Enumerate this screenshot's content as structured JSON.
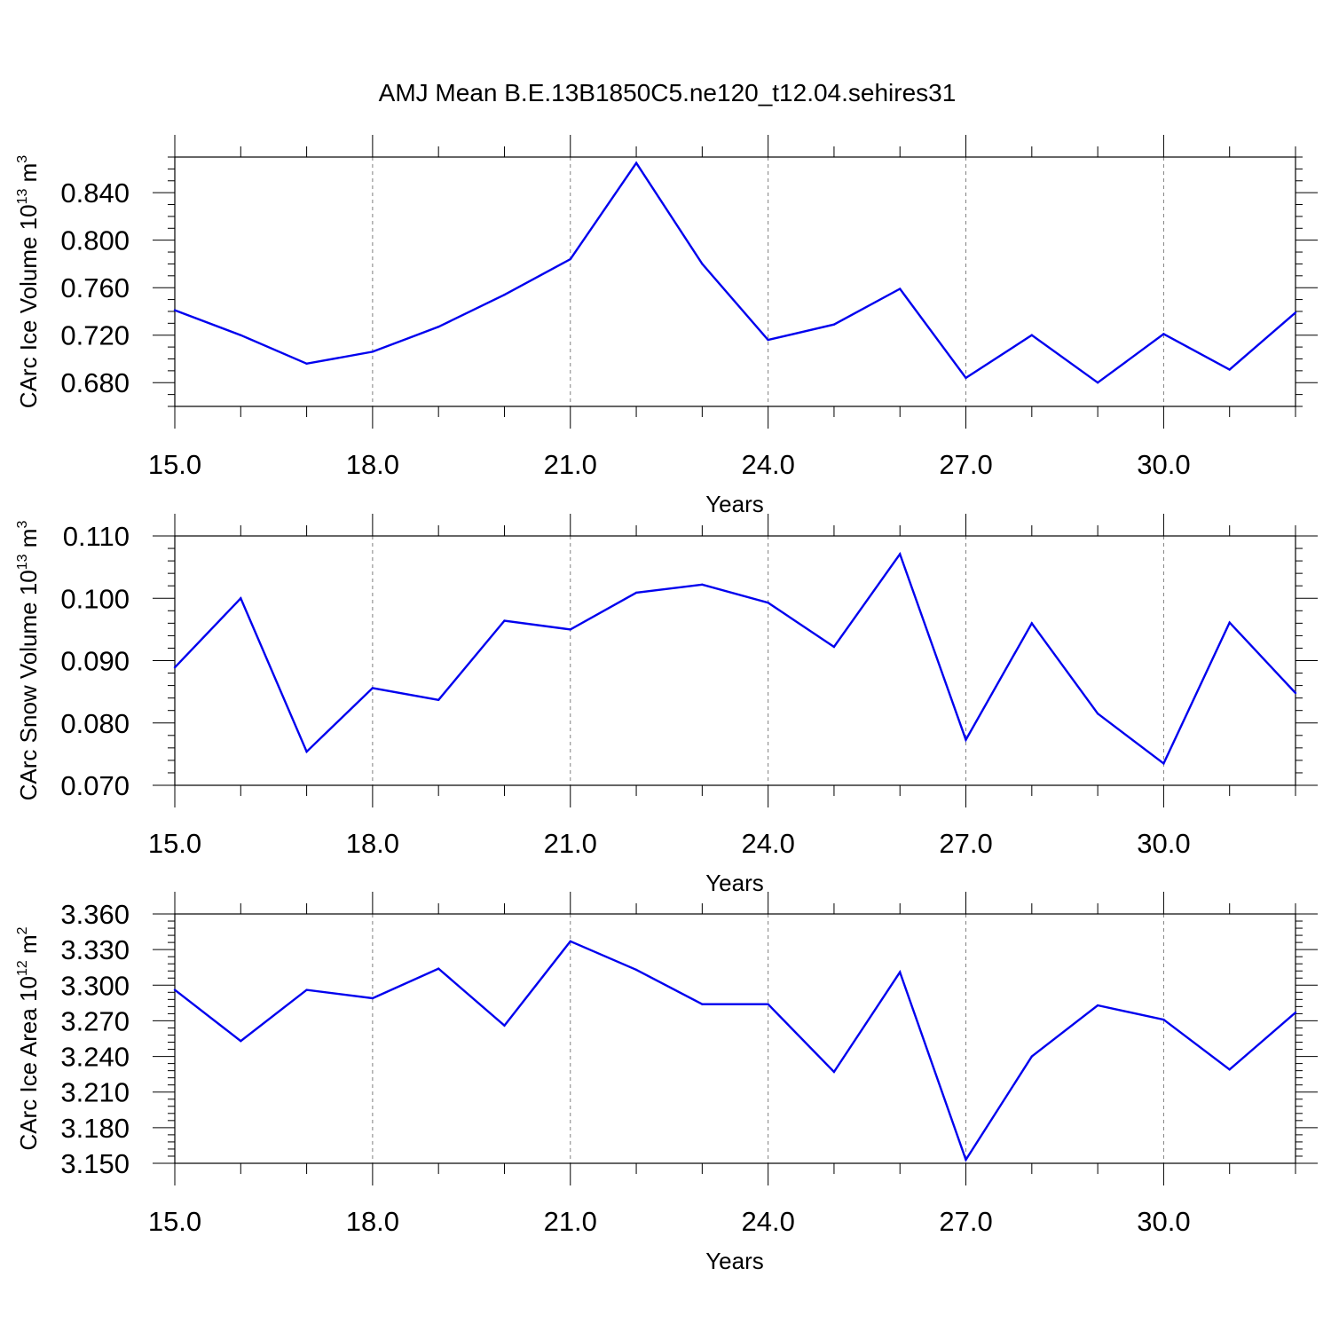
{
  "title": "AMJ Mean B.E.13B1850C5.ne120_t12.04.sehires31",
  "colors": {
    "line": "#0000ee",
    "axis": "#000000",
    "grid": "#808080"
  },
  "chart_data": [
    {
      "type": "line",
      "xlabel": "Years",
      "ylabel": {
        "text": "CArc Ice Volume 10",
        "sup": "13",
        "unit": " m",
        "unit_sup": "3"
      },
      "x": [
        15,
        16,
        17,
        18,
        19,
        20,
        21,
        22,
        23,
        24,
        25,
        26,
        27,
        28,
        29,
        30,
        31,
        32
      ],
      "values": [
        0.741,
        0.72,
        0.696,
        0.706,
        0.727,
        0.754,
        0.784,
        0.865,
        0.78,
        0.716,
        0.729,
        0.759,
        0.684,
        0.72,
        0.68,
        0.721,
        0.691,
        0.739
      ],
      "xlim": [
        15,
        32
      ],
      "ylim": [
        0.66,
        0.87
      ],
      "xticks": [
        15,
        18,
        21,
        24,
        27,
        30
      ],
      "xtick_labels": [
        "15.0",
        "18.0",
        "21.0",
        "24.0",
        "27.0",
        "30.0"
      ],
      "yticks": [
        0.68,
        0.72,
        0.76,
        0.8,
        0.84
      ],
      "ytick_labels": [
        "0.680",
        "0.720",
        "0.760",
        "0.800",
        "0.840"
      ],
      "yminor_step": 0.01,
      "grid": "x-dashed"
    },
    {
      "type": "line",
      "xlabel": "Years",
      "ylabel": {
        "text": "CArc Snow Volume 10",
        "sup": "13",
        "unit": " m",
        "unit_sup": "3"
      },
      "x": [
        15,
        16,
        17,
        18,
        19,
        20,
        21,
        22,
        23,
        24,
        25,
        26,
        27,
        28,
        29,
        30,
        31,
        32
      ],
      "values": [
        0.0889,
        0.1,
        0.0754,
        0.0856,
        0.0837,
        0.0964,
        0.095,
        0.1009,
        0.1022,
        0.0993,
        0.0922,
        0.1071,
        0.0773,
        0.096,
        0.0815,
        0.0735,
        0.0961,
        0.0848
      ],
      "xlim": [
        15,
        32
      ],
      "ylim": [
        0.07,
        0.11
      ],
      "xticks": [
        15,
        18,
        21,
        24,
        27,
        30
      ],
      "xtick_labels": [
        "15.0",
        "18.0",
        "21.0",
        "24.0",
        "27.0",
        "30.0"
      ],
      "yticks": [
        0.07,
        0.08,
        0.09,
        0.1,
        0.11
      ],
      "ytick_labels": [
        "0.070",
        "0.080",
        "0.090",
        "0.100",
        "0.110"
      ],
      "yminor_step": 0.002,
      "grid": "x-dashed"
    },
    {
      "type": "line",
      "xlabel": "Years",
      "ylabel": {
        "text": "CArc Ice Area 10",
        "sup": "12",
        "unit": " m",
        "unit_sup": "2"
      },
      "x": [
        15,
        16,
        17,
        18,
        19,
        20,
        21,
        22,
        23,
        24,
        25,
        26,
        27,
        28,
        29,
        30,
        31,
        32
      ],
      "values": [
        3.296,
        3.253,
        3.296,
        3.289,
        3.314,
        3.266,
        3.337,
        3.313,
        3.284,
        3.284,
        3.227,
        3.311,
        3.153,
        3.24,
        3.283,
        3.271,
        3.229,
        3.277
      ],
      "xlim": [
        15,
        32
      ],
      "ylim": [
        3.15,
        3.36
      ],
      "xticks": [
        15,
        18,
        21,
        24,
        27,
        30
      ],
      "xtick_labels": [
        "15.0",
        "18.0",
        "21.0",
        "24.0",
        "27.0",
        "30.0"
      ],
      "yticks": [
        3.15,
        3.18,
        3.21,
        3.24,
        3.27,
        3.3,
        3.33,
        3.36
      ],
      "ytick_labels": [
        "3.150",
        "3.180",
        "3.210",
        "3.240",
        "3.270",
        "3.300",
        "3.330",
        "3.360"
      ],
      "yminor_step": 0.006,
      "grid": "x-dashed"
    }
  ]
}
